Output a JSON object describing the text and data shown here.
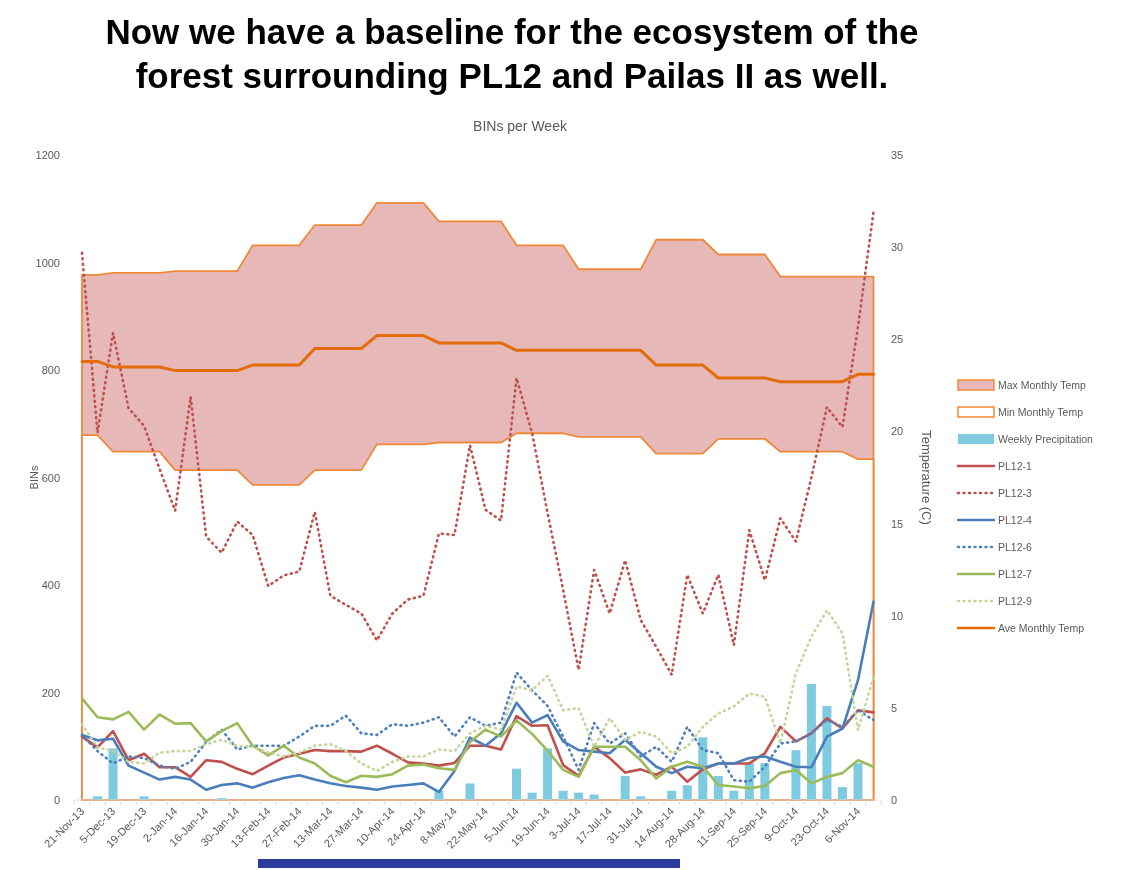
{
  "chart_data": {
    "type": "line",
    "title": "Now we have a baseline for the ecosystem of the forest surrounding PL12 and Pailas II as well.",
    "subtitle": "BINs per Week",
    "ylabel": "BINs",
    "y2label": "Temperature (C)",
    "categories": [
      "21-Nov-13",
      null,
      "5-Dec-13",
      null,
      "19-Dec-13",
      null,
      "2-Jan-14",
      null,
      "16-Jan-14",
      null,
      "30-Jan-14",
      null,
      "13-Feb-14",
      null,
      "27-Feb-14",
      null,
      "13-Mar-14",
      null,
      "27-Mar-14",
      null,
      "10-Apr-14",
      null,
      "24-Apr-14",
      null,
      "8-May-14",
      null,
      "22-May-14",
      null,
      "5-Jun-14",
      null,
      "19-Jun-14",
      null,
      "3-Jul-14",
      null,
      "17-Jul-14",
      null,
      "31-Jul-14",
      null,
      "14-Aug-14",
      null,
      "28-Aug-14",
      null,
      "11-Sep-14",
      null,
      "25-Sep-14",
      null,
      "9-Oct-14",
      null,
      "23-Oct-14",
      null,
      "6-Nov-14",
      null
    ],
    "ylim": [
      0,
      1200
    ],
    "yticks": [
      0,
      200,
      400,
      600,
      800,
      1000,
      1200
    ],
    "y2lim": [
      0,
      35
    ],
    "y2ticks": [
      0,
      5,
      10,
      15,
      20,
      25,
      30,
      35
    ],
    "grid": false,
    "legend": "right",
    "series": [
      {
        "name": "Max Monthly Temp",
        "type": "area",
        "axis": "y2",
        "color": "#e6b9b8",
        "values": [
          28.5,
          28.5,
          28.6,
          28.6,
          28.6,
          28.6,
          28.7,
          28.7,
          28.7,
          28.7,
          28.7,
          30.1,
          30.1,
          30.1,
          30.1,
          31.2,
          31.2,
          31.2,
          31.2,
          32.4,
          32.4,
          32.4,
          32.4,
          31.4,
          31.4,
          31.4,
          31.4,
          31.4,
          30.1,
          30.1,
          30.1,
          30.1,
          28.8,
          28.8,
          28.8,
          28.8,
          28.8,
          30.4,
          30.4,
          30.4,
          30.4,
          29.6,
          29.6,
          29.6,
          29.6,
          28.4,
          28.4,
          28.4,
          28.4,
          28.4,
          28.4,
          28.4
        ]
      },
      {
        "name": "Min Monthly Temp",
        "type": "area",
        "axis": "y2",
        "color": "#ffffff",
        "values": [
          19.8,
          19.8,
          18.9,
          18.9,
          18.9,
          18.9,
          17.9,
          17.9,
          17.9,
          17.9,
          17.9,
          17.1,
          17.1,
          17.1,
          17.1,
          17.9,
          17.9,
          17.9,
          17.9,
          19.3,
          19.3,
          19.3,
          19.3,
          19.4,
          19.4,
          19.4,
          19.4,
          19.4,
          19.9,
          19.9,
          19.9,
          19.9,
          19.7,
          19.7,
          19.7,
          19.7,
          19.7,
          18.8,
          18.8,
          18.8,
          18.8,
          19.6,
          19.6,
          19.6,
          19.6,
          18.9,
          18.9,
          18.9,
          18.9,
          18.9,
          18.5,
          18.5
        ]
      },
      {
        "name": "Weekly Precipitation",
        "type": "bar",
        "axis": "y2",
        "color": "#7ecbe0",
        "values": [
          0,
          0.2,
          2.8,
          0,
          0.2,
          0,
          0,
          0,
          0,
          0.1,
          0,
          0,
          0,
          0,
          0,
          0,
          0,
          0,
          0,
          0,
          0,
          0,
          0,
          0.5,
          0,
          0.9,
          0,
          0,
          1.7,
          0.4,
          2.8,
          0.5,
          0.4,
          0.3,
          0,
          1.3,
          0.2,
          0,
          0.5,
          0.8,
          3.4,
          1.3,
          0.5,
          2.0,
          2.0,
          0,
          2.7,
          6.3,
          5.1,
          0.7,
          2.0,
          0
        ]
      },
      {
        "name": "PL12-1",
        "line_style": "solid",
        "color": "#c0504d",
        "values": [
          118,
          98,
          128,
          74,
          86,
          61,
          61,
          43,
          74,
          71,
          58,
          48,
          64,
          79,
          86,
          93,
          91,
          91,
          90,
          101,
          86,
          70,
          68,
          64,
          69,
          101,
          101,
          94,
          156,
          138,
          139,
          65,
          45,
          99,
          78,
          51,
          57,
          47,
          62,
          34,
          57,
          68,
          68,
          68,
          87,
          136,
          109,
          124,
          152,
          133,
          167,
          163
        ]
      },
      {
        "name": "PL12-3",
        "line_style": "dotted",
        "color": "#c0504d",
        "values": [
          1018,
          683,
          869,
          729,
          696,
          616,
          538,
          750,
          490,
          460,
          518,
          493,
          398,
          418,
          425,
          536,
          380,
          363,
          347,
          297,
          347,
          373,
          380,
          496,
          493,
          660,
          540,
          520,
          785,
          683,
          534,
          391,
          242,
          428,
          347,
          446,
          335,
          285,
          233,
          419,
          347,
          419,
          288,
          502,
          409,
          524,
          481,
          600,
          731,
          694,
          880,
          1094
        ]
      },
      {
        "name": "PL12-4",
        "line_style": "solid",
        "color": "#4a7ebb",
        "values": [
          121,
          111,
          114,
          64,
          51,
          38,
          43,
          38,
          19,
          28,
          31,
          23,
          33,
          41,
          46,
          38,
          31,
          26,
          23,
          19,
          25,
          28,
          31,
          15,
          54,
          116,
          101,
          124,
          181,
          144,
          158,
          109,
          93,
          90,
          87,
          112,
          87,
          62,
          50,
          62,
          59,
          68,
          68,
          78,
          81,
          71,
          62,
          61,
          118,
          133,
          223,
          369
        ]
      },
      {
        "name": "PL12-6",
        "line_style": "dotted",
        "color": "#4f81bd",
        "values": [
          121,
          91,
          68,
          81,
          78,
          64,
          58,
          71,
          108,
          131,
          94,
          101,
          101,
          101,
          118,
          138,
          138,
          157,
          124,
          121,
          141,
          138,
          144,
          154,
          118,
          154,
          138,
          144,
          237,
          204,
          175,
          118,
          56,
          143,
          105,
          124,
          81,
          99,
          71,
          136,
          93,
          87,
          37,
          34,
          62,
          105,
          109,
          124,
          149,
          136,
          167,
          149
        ]
      },
      {
        "name": "PL12-7",
        "line_style": "solid",
        "color": "#9bbb59",
        "values": [
          189,
          154,
          150,
          164,
          131,
          159,
          142,
          143,
          109,
          128,
          143,
          101,
          83,
          101,
          79,
          68,
          45,
          33,
          45,
          43,
          48,
          64,
          66,
          59,
          56,
          108,
          131,
          118,
          148,
          123,
          92,
          56,
          43,
          99,
          99,
          99,
          74,
          40,
          62,
          71,
          62,
          28,
          25,
          22,
          26,
          50,
          56,
          31,
          43,
          50,
          74,
          62
        ]
      },
      {
        "name": "PL12-9",
        "line_style": "dotted",
        "color": "#c3d69b",
        "values": [
          141,
          98,
          91,
          71,
          68,
          88,
          91,
          91,
          104,
          112,
          101,
          99,
          88,
          81,
          88,
          101,
          104,
          91,
          68,
          54,
          71,
          81,
          81,
          94,
          91,
          124,
          138,
          131,
          211,
          204,
          231,
          167,
          171,
          99,
          152,
          112,
          127,
          118,
          87,
          99,
          136,
          161,
          174,
          198,
          192,
          105,
          236,
          304,
          353,
          310,
          130,
          229
        ]
      },
      {
        "name": "Ave Monthly Temp",
        "type": "line",
        "axis": "y2",
        "line_style": "solid",
        "color": "#e46c0a",
        "values": [
          23.8,
          23.8,
          23.5,
          23.5,
          23.5,
          23.5,
          23.3,
          23.3,
          23.3,
          23.3,
          23.3,
          23.6,
          23.6,
          23.6,
          23.6,
          24.5,
          24.5,
          24.5,
          24.5,
          25.2,
          25.2,
          25.2,
          25.2,
          24.8,
          24.8,
          24.8,
          24.8,
          24.8,
          24.4,
          24.4,
          24.4,
          24.4,
          24.4,
          24.4,
          24.4,
          24.4,
          24.4,
          23.6,
          23.6,
          23.6,
          23.6,
          22.9,
          22.9,
          22.9,
          22.9,
          22.7,
          22.7,
          22.7,
          22.7,
          22.7,
          23.1,
          23.1
        ]
      }
    ]
  }
}
